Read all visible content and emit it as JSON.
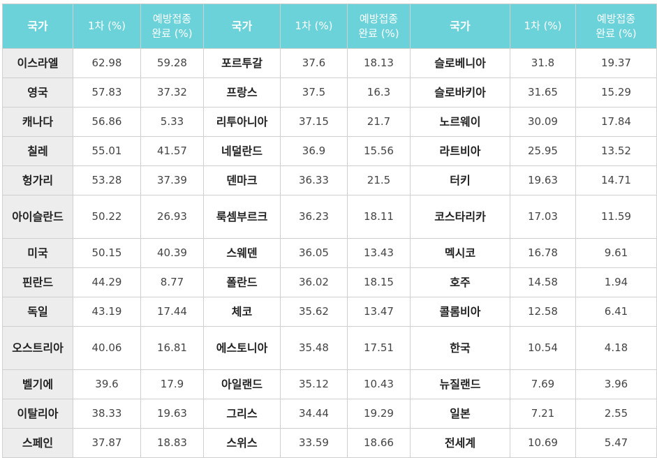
{
  "headers": [
    "국가",
    "1차 (%)",
    "예방접종\n완료 (%)",
    "국가",
    "1차 (%)",
    "예방접종\n완료 (%)",
    "국가",
    "1차 (%)",
    "예방접종\n완료 (%)"
  ],
  "rows": [
    [
      "이스라엘",
      "62.98",
      "59.28",
      "포르투갈",
      "37.6",
      "18.13",
      "슬로베니아",
      "31.8",
      "19.37"
    ],
    [
      "영국",
      "57.83",
      "37.32",
      "프랑스",
      "37.5",
      "16.3",
      "슬로바키아",
      "31.65",
      "15.29"
    ],
    [
      "캐나다",
      "56.86",
      "5.33",
      "리투아니아",
      "37.15",
      "21.7",
      "노르웨이",
      "30.09",
      "17.84"
    ],
    [
      "칠레",
      "55.01",
      "41.57",
      "네덜란드",
      "36.9",
      "15.56",
      "라트비아",
      "25.95",
      "13.52"
    ],
    [
      "헝가리",
      "53.28",
      "37.39",
      "덴마크",
      "36.33",
      "21.5",
      "터키",
      "19.63",
      "14.71"
    ],
    [
      "아이슬란드",
      "50.22",
      "26.93",
      "룩셈부르크",
      "36.23",
      "18.11",
      "코스타리카",
      "17.03",
      "11.59"
    ],
    [
      "미국",
      "50.15",
      "40.39",
      "스웨덴",
      "36.05",
      "13.43",
      "멕시코",
      "16.78",
      "9.61"
    ],
    [
      "핀란드",
      "44.29",
      "8.77",
      "폴란드",
      "36.02",
      "18.15",
      "호주",
      "14.58",
      "1.94"
    ],
    [
      "독일",
      "43.19",
      "17.44",
      "체코",
      "35.62",
      "13.47",
      "콜롬비아",
      "12.58",
      "6.41"
    ],
    [
      "오스트리아",
      "40.06",
      "16.81",
      "에스토니아",
      "35.48",
      "17.51",
      "한국",
      "10.54",
      "4.18"
    ],
    [
      "벨기에",
      "39.6",
      "17.9",
      "아일랜드",
      "35.12",
      "10.43",
      "뉴질랜드",
      "7.69",
      "3.96"
    ],
    [
      "이탈리아",
      "38.33",
      "19.63",
      "그리스",
      "34.44",
      "19.29",
      "일본",
      "7.21",
      "2.55"
    ],
    [
      "스페인",
      "37.87",
      "18.83",
      "스위스",
      "33.59",
      "18.66",
      "전세계",
      "10.69",
      "5.47"
    ]
  ]
}
